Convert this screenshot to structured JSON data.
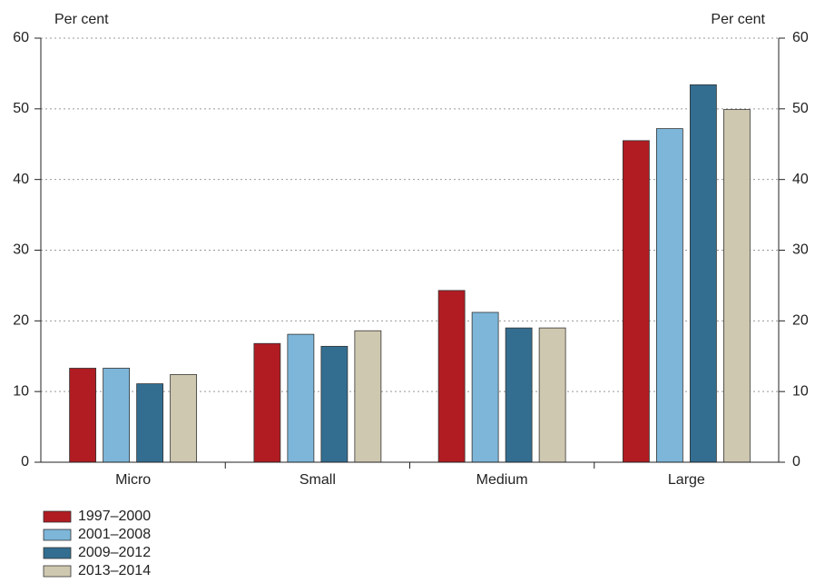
{
  "chart_data": {
    "type": "bar",
    "ylabel": "Per cent",
    "y2label": "Per cent",
    "categories": [
      "Micro",
      "Small",
      "Medium",
      "Large"
    ],
    "series": [
      {
        "name": "1997–2000",
        "color": "#b01c22",
        "values": [
          13.3,
          16.8,
          24.3,
          45.5
        ]
      },
      {
        "name": "2001–2008",
        "color": "#7db6d9",
        "values": [
          13.3,
          18.1,
          21.2,
          47.2
        ]
      },
      {
        "name": "2009–2012",
        "color": "#336e91",
        "values": [
          11.1,
          16.4,
          19.0,
          53.4
        ]
      },
      {
        "name": "2013–2014",
        "color": "#cfc8b0",
        "values": [
          12.4,
          18.6,
          19.0,
          49.9
        ]
      }
    ],
    "ylim": [
      0,
      60
    ],
    "yticks": [
      0,
      10,
      20,
      30,
      40,
      50,
      60
    ],
    "y2lim": [
      0,
      60
    ],
    "y2ticks": [
      0,
      10,
      20,
      30,
      40,
      50,
      60
    ],
    "grid": true,
    "legend": "bottom-left"
  }
}
